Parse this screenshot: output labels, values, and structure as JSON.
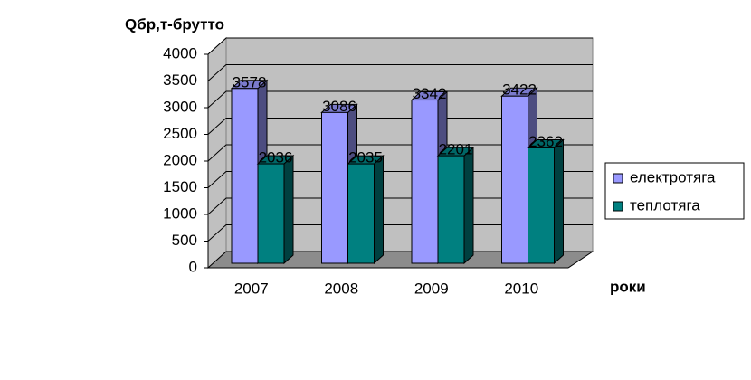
{
  "chart_data": {
    "type": "bar3d",
    "y_label": "Qбр,т-брутто",
    "x_label": "роки",
    "categories": [
      "2007",
      "2008",
      "2009",
      "2010"
    ],
    "series": [
      {
        "name": "електротяга",
        "color": "#9999ff",
        "values": [
          3578,
          3086,
          3342,
          3422
        ]
      },
      {
        "name": "теплотяга",
        "color": "#008080",
        "values": [
          2036,
          2035,
          2201,
          2362
        ]
      }
    ],
    "ylim": [
      0,
      4000
    ],
    "yticks": [
      0,
      500,
      1000,
      1500,
      2000,
      2500,
      3000,
      3500,
      4000
    ],
    "grid": true,
    "legend": "right"
  }
}
